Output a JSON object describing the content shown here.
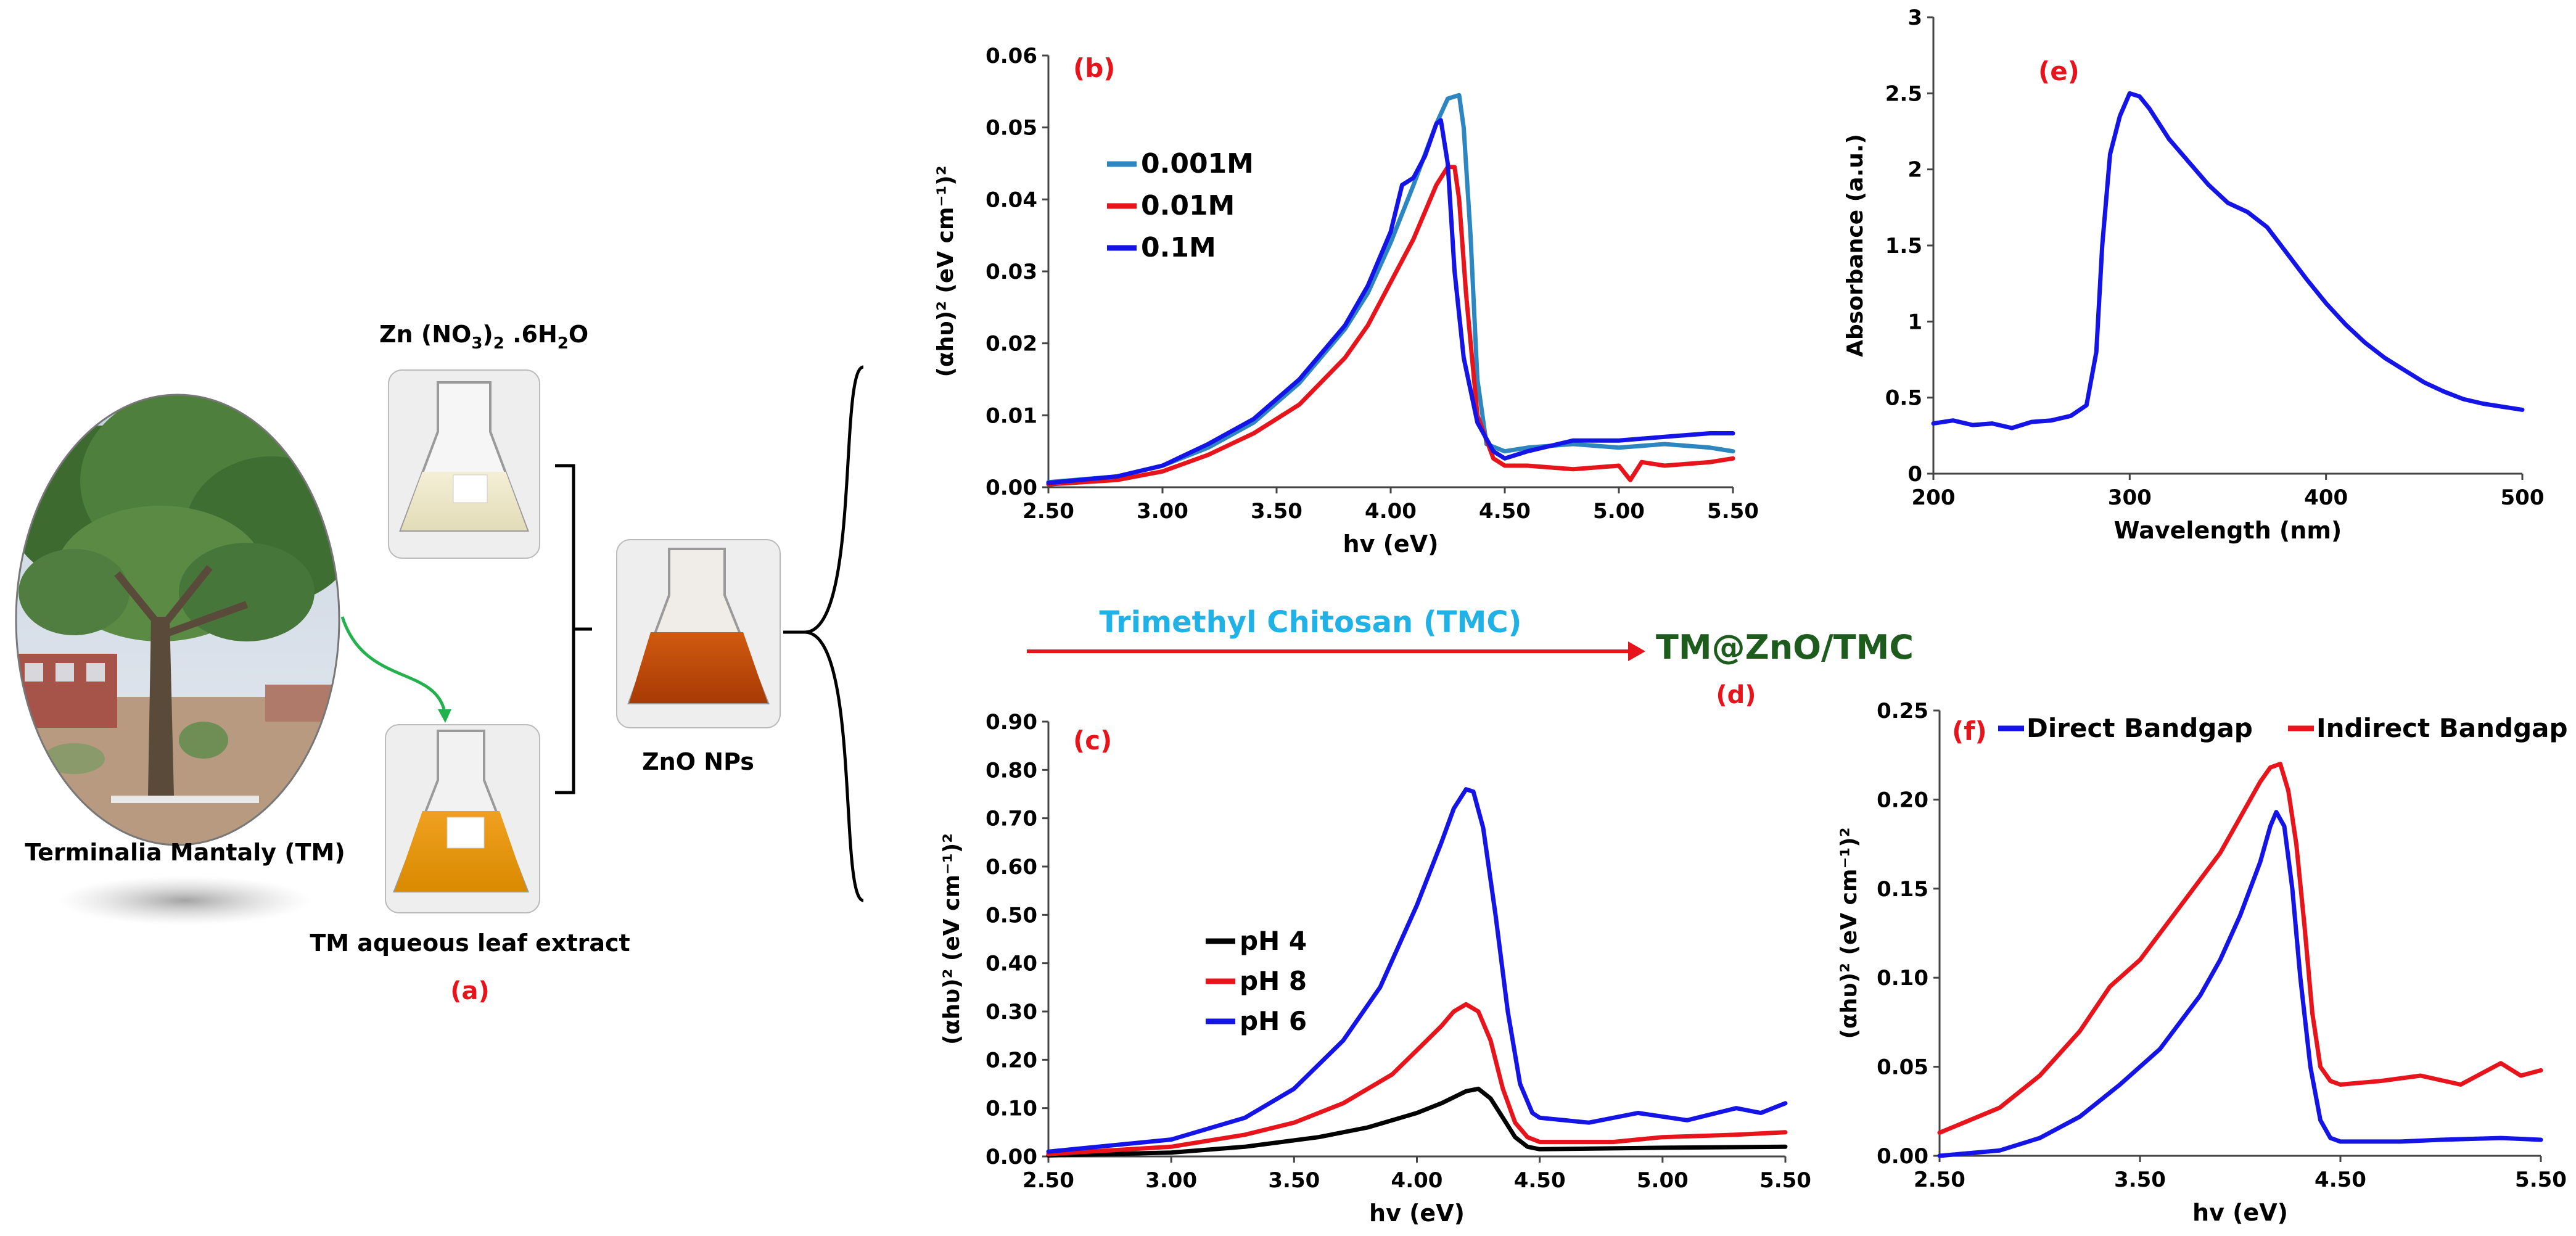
{
  "colors": {
    "red": "#e8141b",
    "blue": "#1414e6",
    "black": "#000000",
    "teal": "#2e86c1",
    "green_text": "#1d5c1d",
    "cyan_text": "#20b2e6",
    "panel_label": "#e8141b",
    "bracket": "#000000"
  },
  "scheme": {
    "tree_caption": "Terminalia Mantaly (TM)",
    "salt_label_parts": [
      "Zn (NO",
      "3",
      ")",
      "2",
      " .6H",
      "2",
      "O"
    ],
    "extract_caption": "TM aqueous leaf extract",
    "nps_caption": "ZnO NPs",
    "panel_a": "(a)",
    "arrow_label": "Trimethyl Chitosan (TMC)",
    "product_label": "TM@ZnO/TMC",
    "panel_d": "(d)"
  },
  "icons": [
    "tree-photo-icon",
    "flask-icon",
    "curved-arrow-icon",
    "arrow-right-icon"
  ],
  "chart_data": [
    {
      "id": "b",
      "type": "line",
      "panel_label": "(b)",
      "xlabel": "hv (eV)",
      "ylabel": "(αhυ)² (eV cm⁻¹)²",
      "xlim": [
        2.5,
        5.5
      ],
      "ylim": [
        0,
        0.06
      ],
      "xticks": [
        "2.50",
        "3.00",
        "3.50",
        "4.00",
        "4.50",
        "5.00",
        "5.50"
      ],
      "yticks": [
        "0.00",
        "0.01",
        "0.02",
        "0.03",
        "0.04",
        "0.05",
        "0.06"
      ],
      "legend": "upper-left",
      "series": [
        {
          "name": "0.001M",
          "color": "#2e86c1",
          "x": [
            2.5,
            2.8,
            3.0,
            3.2,
            3.4,
            3.6,
            3.8,
            3.9,
            4.0,
            4.1,
            4.2,
            4.25,
            4.3,
            4.32,
            4.35,
            4.38,
            4.42,
            4.5,
            4.6,
            4.8,
            5.0,
            5.2,
            5.4,
            5.5
          ],
          "y": [
            0.0007,
            0.0015,
            0.003,
            0.0055,
            0.009,
            0.0145,
            0.022,
            0.027,
            0.034,
            0.042,
            0.0505,
            0.054,
            0.0545,
            0.05,
            0.035,
            0.015,
            0.006,
            0.005,
            0.0055,
            0.006,
            0.0055,
            0.006,
            0.0055,
            0.005
          ]
        },
        {
          "name": "0.01M",
          "color": "#e8141b",
          "x": [
            2.5,
            2.8,
            3.0,
            3.2,
            3.4,
            3.6,
            3.8,
            3.9,
            4.0,
            4.1,
            4.2,
            4.25,
            4.28,
            4.3,
            4.33,
            4.38,
            4.45,
            4.5,
            4.6,
            4.8,
            5.0,
            5.05,
            5.1,
            5.2,
            5.4,
            5.5
          ],
          "y": [
            0.0004,
            0.001,
            0.0022,
            0.0045,
            0.0075,
            0.0115,
            0.018,
            0.0225,
            0.0285,
            0.0345,
            0.042,
            0.0445,
            0.0445,
            0.04,
            0.027,
            0.01,
            0.004,
            0.003,
            0.003,
            0.0025,
            0.003,
            0.001,
            0.0035,
            0.003,
            0.0035,
            0.004
          ]
        },
        {
          "name": "0.1M",
          "color": "#1414e6",
          "x": [
            2.5,
            2.8,
            3.0,
            3.2,
            3.4,
            3.6,
            3.8,
            3.9,
            4.0,
            4.05,
            4.1,
            4.15,
            4.2,
            4.22,
            4.25,
            4.28,
            4.32,
            4.38,
            4.45,
            4.5,
            4.6,
            4.8,
            5.0,
            5.2,
            5.4,
            5.5
          ],
          "y": [
            0.0006,
            0.0015,
            0.003,
            0.006,
            0.0095,
            0.015,
            0.0225,
            0.028,
            0.0355,
            0.042,
            0.043,
            0.046,
            0.0505,
            0.051,
            0.045,
            0.03,
            0.018,
            0.009,
            0.005,
            0.004,
            0.005,
            0.0065,
            0.0065,
            0.007,
            0.0075,
            0.0075
          ]
        }
      ]
    },
    {
      "id": "c",
      "type": "line",
      "panel_label": "(c)",
      "xlabel": "hv (eV)",
      "ylabel": "(αhυ)² (eV cm⁻¹)²",
      "xlim": [
        2.5,
        5.5
      ],
      "ylim": [
        0,
        0.9
      ],
      "xticks": [
        "2.50",
        "3.00",
        "3.50",
        "4.00",
        "4.50",
        "5.00",
        "5.50"
      ],
      "yticks": [
        "0.00",
        "0.10",
        "0.20",
        "0.30",
        "0.40",
        "0.50",
        "0.60",
        "0.70",
        "0.80",
        "0.90"
      ],
      "legend": "center-left",
      "series": [
        {
          "name": "pH 4",
          "color": "#000000",
          "x": [
            2.5,
            3.0,
            3.3,
            3.6,
            3.8,
            4.0,
            4.1,
            4.2,
            4.25,
            4.3,
            4.35,
            4.4,
            4.45,
            4.5,
            5.0,
            5.5
          ],
          "y": [
            0.002,
            0.008,
            0.02,
            0.04,
            0.06,
            0.09,
            0.11,
            0.135,
            0.14,
            0.12,
            0.08,
            0.04,
            0.02,
            0.015,
            0.018,
            0.02
          ]
        },
        {
          "name": "pH 8",
          "color": "#e8141b",
          "x": [
            2.5,
            3.0,
            3.3,
            3.5,
            3.7,
            3.9,
            4.0,
            4.1,
            4.15,
            4.2,
            4.25,
            4.3,
            4.35,
            4.4,
            4.45,
            4.5,
            4.8,
            5.0,
            5.3,
            5.5
          ],
          "y": [
            0.005,
            0.02,
            0.045,
            0.07,
            0.11,
            0.17,
            0.22,
            0.27,
            0.3,
            0.315,
            0.3,
            0.24,
            0.14,
            0.07,
            0.04,
            0.03,
            0.03,
            0.04,
            0.045,
            0.05
          ]
        },
        {
          "name": "pH 6",
          "color": "#1414e6",
          "x": [
            2.5,
            3.0,
            3.3,
            3.5,
            3.7,
            3.85,
            4.0,
            4.1,
            4.15,
            4.2,
            4.23,
            4.27,
            4.32,
            4.37,
            4.42,
            4.47,
            4.5,
            4.7,
            4.9,
            5.1,
            5.3,
            5.4,
            5.5
          ],
          "y": [
            0.01,
            0.035,
            0.08,
            0.14,
            0.24,
            0.35,
            0.52,
            0.65,
            0.72,
            0.76,
            0.755,
            0.68,
            0.5,
            0.3,
            0.15,
            0.09,
            0.08,
            0.07,
            0.09,
            0.075,
            0.1,
            0.09,
            0.11
          ]
        }
      ]
    },
    {
      "id": "e",
      "type": "line",
      "panel_label": "(e)",
      "xlabel": "Wavelength (nm)",
      "ylabel": "Absorbance (a.u.)",
      "xlim": [
        200,
        500
      ],
      "ylim": [
        0,
        3
      ],
      "xticks": [
        "200",
        "300",
        "400",
        "500"
      ],
      "yticks": [
        "0",
        "0.5",
        "1",
        "1.5",
        "2",
        "2.5",
        "3"
      ],
      "legend": "none",
      "series": [
        {
          "name": "Absorbance",
          "color": "#1414e6",
          "x": [
            200,
            210,
            220,
            230,
            240,
            250,
            260,
            270,
            278,
            283,
            286,
            290,
            295,
            300,
            305,
            310,
            320,
            330,
            340,
            350,
            360,
            370,
            380,
            390,
            400,
            410,
            420,
            430,
            440,
            450,
            460,
            470,
            480,
            490,
            500
          ],
          "y": [
            0.33,
            0.35,
            0.32,
            0.33,
            0.3,
            0.34,
            0.35,
            0.38,
            0.45,
            0.8,
            1.5,
            2.1,
            2.35,
            2.5,
            2.48,
            2.4,
            2.2,
            2.05,
            1.9,
            1.78,
            1.72,
            1.62,
            1.45,
            1.28,
            1.12,
            0.98,
            0.86,
            0.76,
            0.68,
            0.6,
            0.54,
            0.49,
            0.46,
            0.44,
            0.42
          ]
        }
      ]
    },
    {
      "id": "f",
      "type": "line",
      "panel_label": "(f)",
      "xlabel": "hv (eV)",
      "ylabel": "(αhυ)² (eV cm⁻¹)²",
      "xlim": [
        2.5,
        5.5
      ],
      "ylim": [
        0,
        0.25
      ],
      "xticks": [
        "2.50",
        "3.50",
        "4.50",
        "5.50"
      ],
      "yticks": [
        "0.00",
        "0.05",
        "0.10",
        "0.15",
        "0.20",
        "0.25"
      ],
      "legend": "top",
      "series": [
        {
          "name": "Direct Bandgap",
          "color": "#1414e6",
          "x": [
            2.5,
            2.8,
            3.0,
            3.2,
            3.4,
            3.6,
            3.8,
            3.9,
            4.0,
            4.1,
            4.15,
            4.18,
            4.22,
            4.26,
            4.3,
            4.35,
            4.4,
            4.45,
            4.5,
            4.8,
            5.0,
            5.3,
            5.5
          ],
          "y": [
            0.0,
            0.003,
            0.01,
            0.022,
            0.04,
            0.06,
            0.09,
            0.11,
            0.135,
            0.165,
            0.185,
            0.193,
            0.185,
            0.15,
            0.1,
            0.05,
            0.02,
            0.01,
            0.008,
            0.008,
            0.009,
            0.01,
            0.009
          ]
        },
        {
          "name": "Indirect Bandgap",
          "color": "#e8141b",
          "x": [
            2.5,
            2.8,
            3.0,
            3.2,
            3.35,
            3.5,
            3.7,
            3.9,
            4.0,
            4.1,
            4.15,
            4.2,
            4.24,
            4.28,
            4.32,
            4.36,
            4.4,
            4.45,
            4.5,
            4.7,
            4.9,
            5.1,
            5.3,
            5.4,
            5.5
          ],
          "y": [
            0.013,
            0.027,
            0.045,
            0.07,
            0.095,
            0.11,
            0.14,
            0.17,
            0.19,
            0.21,
            0.218,
            0.22,
            0.205,
            0.175,
            0.13,
            0.08,
            0.05,
            0.042,
            0.04,
            0.042,
            0.045,
            0.04,
            0.052,
            0.045,
            0.048
          ]
        }
      ]
    }
  ]
}
